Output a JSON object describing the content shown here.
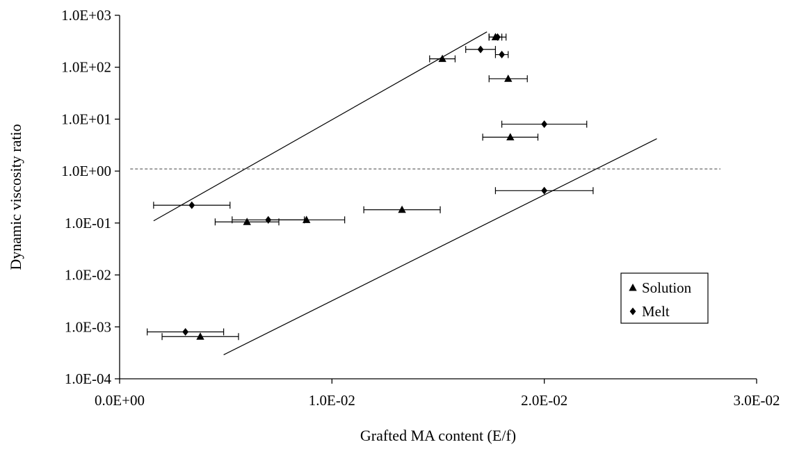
{
  "chart_data": {
    "type": "scatter",
    "title": "",
    "xlabel": "Grafted MA content (E/f)",
    "ylabel": "Dynamic viscosity ratio",
    "x_scale": "linear",
    "y_scale": "log",
    "xlim": [
      0,
      0.03
    ],
    "ylim": [
      0.0001,
      1000
    ],
    "x_tick_values": [
      0,
      0.01,
      0.02,
      0.03
    ],
    "x_tick_labels": [
      "0.0E+00",
      "1.0E-02",
      "2.0E-02",
      "3.0E-02"
    ],
    "y_tick_values": [
      0.0001,
      0.001,
      0.01,
      0.1,
      1,
      10,
      100,
      1000
    ],
    "y_tick_labels": [
      "1.0E-04",
      "1.0E-03",
      "1.0E-02",
      "1.0E-01",
      "1.0E+00",
      "1.0E+01",
      "1.0E+02",
      "1.0E+03"
    ],
    "grid": false,
    "legend_position": "bottom-right",
    "series": [
      {
        "name": "Solution",
        "marker": "triangle",
        "color": "#000000",
        "points": [
          {
            "x": 0.0038,
            "y": 0.00065,
            "xerr": 0.0018
          },
          {
            "x": 0.006,
            "y": 0.105,
            "xerr": 0.0015
          },
          {
            "x": 0.0088,
            "y": 0.115,
            "xerr": 0.0018
          },
          {
            "x": 0.0133,
            "y": 0.18,
            "xerr": 0.0018
          },
          {
            "x": 0.0152,
            "y": 145,
            "xerr": 0.0006
          },
          {
            "x": 0.0177,
            "y": 380,
            "xerr": 0.0003
          },
          {
            "x": 0.0183,
            "y": 60,
            "xerr": 0.0009
          },
          {
            "x": 0.0184,
            "y": 4.5,
            "xerr": 0.0013
          }
        ]
      },
      {
        "name": "Melt",
        "marker": "diamond",
        "color": "#000000",
        "points": [
          {
            "x": 0.0031,
            "y": 0.0008,
            "xerr": 0.0018
          },
          {
            "x": 0.0034,
            "y": 0.22,
            "xerr": 0.0018
          },
          {
            "x": 0.007,
            "y": 0.115,
            "xerr": 0.0017
          },
          {
            "x": 0.017,
            "y": 220,
            "xerr": 0.0007
          },
          {
            "x": 0.0178,
            "y": 380,
            "xerr": 0.0004
          },
          {
            "x": 0.018,
            "y": 175,
            "xerr": 0.0003
          },
          {
            "x": 0.02,
            "y": 8,
            "xerr": 0.002
          },
          {
            "x": 0.02,
            "y": 0.42,
            "xerr": 0.0023
          }
        ]
      }
    ],
    "reference_lines": [
      {
        "style": "solid",
        "x": [
          0.0016,
          0.0173
        ],
        "y": [
          0.11,
          480
        ]
      },
      {
        "style": "solid",
        "x": [
          0.0049,
          0.0253
        ],
        "y": [
          0.00029,
          4.2
        ]
      },
      {
        "style": "dashed",
        "x": [
          0.0005,
          0.0283
        ],
        "y": [
          1.1,
          1.1
        ]
      }
    ]
  }
}
